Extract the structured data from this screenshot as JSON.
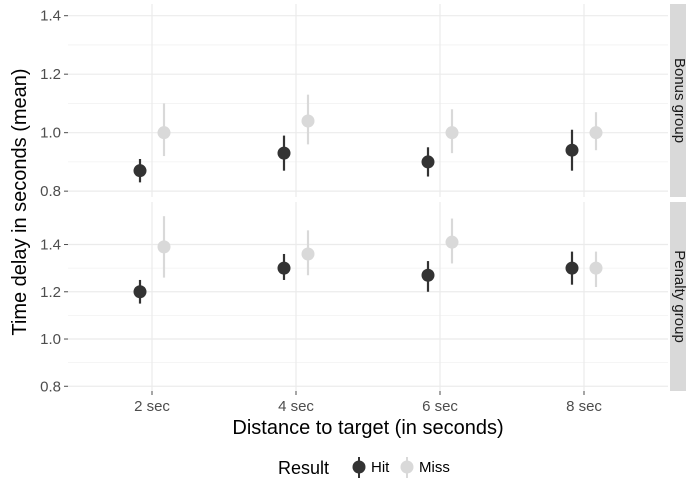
{
  "chart_data": {
    "type": "scatter",
    "subtype": "pointrange",
    "xlabel": "Distance to target (in seconds)",
    "ylabel": "Time delay in seconds (mean)",
    "categories": [
      "2 sec",
      "4 sec",
      "6 sec",
      "8 sec"
    ],
    "legend": {
      "title": "Result",
      "position": "bottom",
      "entries": [
        "Hit",
        "Miss"
      ]
    },
    "colors": {
      "Hit": "#333333",
      "Miss": "#d9d9d9",
      "strip": "#d9d9d9",
      "grid": "#ebebeb"
    },
    "grid": true,
    "panels": [
      {
        "label": "Bonus group",
        "ylim": [
          0.78,
          1.44
        ],
        "yticks": [
          "0.8",
          "1.0",
          "1.2",
          "1.4"
        ],
        "series": [
          {
            "name": "Hit",
            "values": [
              0.87,
              0.93,
              0.9,
              0.94
            ],
            "lower": [
              0.83,
              0.87,
              0.85,
              0.87
            ],
            "upper": [
              0.91,
              0.99,
              0.95,
              1.01
            ]
          },
          {
            "name": "Miss",
            "values": [
              1.0,
              1.04,
              1.0,
              1.0
            ],
            "lower": [
              0.92,
              0.96,
              0.93,
              0.94
            ],
            "upper": [
              1.1,
              1.13,
              1.08,
              1.07
            ]
          }
        ]
      },
      {
        "label": "Penalty group",
        "ylim": [
          0.78,
          1.58
        ],
        "yticks": [
          "0.8",
          "1.0",
          "1.2",
          "1.4"
        ],
        "series": [
          {
            "name": "Hit",
            "values": [
              1.2,
              1.3,
              1.27,
              1.3
            ],
            "lower": [
              1.15,
              1.25,
              1.2,
              1.23
            ],
            "upper": [
              1.25,
              1.36,
              1.33,
              1.37
            ]
          },
          {
            "name": "Miss",
            "values": [
              1.39,
              1.36,
              1.41,
              1.3
            ],
            "lower": [
              1.26,
              1.27,
              1.32,
              1.22
            ],
            "upper": [
              1.52,
              1.46,
              1.51,
              1.37
            ]
          }
        ]
      }
    ]
  }
}
